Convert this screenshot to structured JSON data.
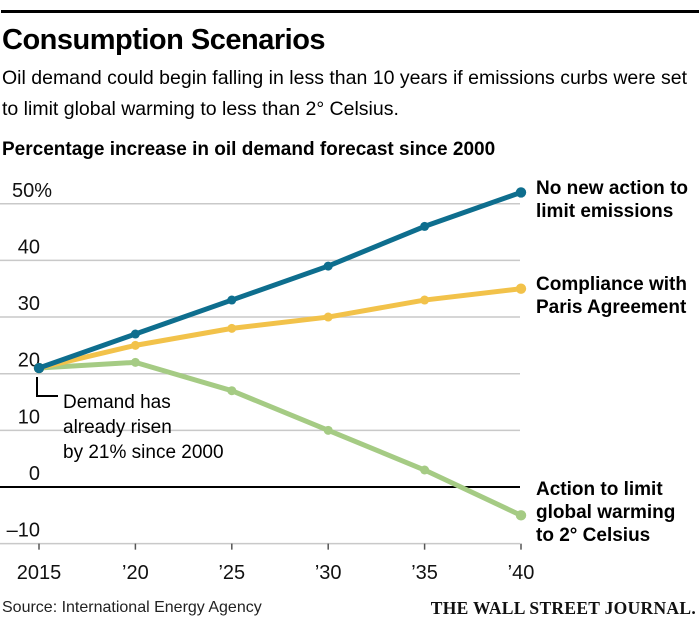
{
  "header": {
    "title": "Consumption Scenarios",
    "subtitle": "Oil demand could begin falling in less than 10 years if emissions curbs were set to limit global warming to less than 2° Celsius.",
    "chart_label": "Percentage increase in oil demand forecast since 2000"
  },
  "chart_data": {
    "type": "line",
    "title": "Percentage increase in oil demand forecast since 2000",
    "x": [
      2015,
      2020,
      2025,
      2030,
      2035,
      2040
    ],
    "x_tick_labels": [
      "2015",
      "’20",
      "’25",
      "’30",
      "’35",
      "’40"
    ],
    "y_ticks": [
      {
        "label": "50%",
        "value": 50
      },
      {
        "label": "40",
        "value": 40
      },
      {
        "label": "30",
        "value": 30
      },
      {
        "label": "20",
        "value": 20
      },
      {
        "label": "10",
        "value": 10
      },
      {
        "label": "0",
        "value": 0
      },
      {
        "label": "–10",
        "value": -10
      }
    ],
    "ylim": [
      -10,
      50
    ],
    "y_unit": "%",
    "grid": true,
    "grid_color": "#c9c9c9",
    "zero_line_color": "#000000",
    "tick_color": "#111111",
    "legend_position": "right",
    "series": [
      {
        "name": "no-new-action",
        "label": "No new action to limit emissions",
        "label_lines": [
          "No new action to",
          "limit emissions"
        ],
        "color": "#0e6e8e",
        "values": [
          21,
          27,
          33,
          39,
          46,
          52
        ]
      },
      {
        "name": "paris-agreement",
        "label": "Compliance with Paris Agreement",
        "label_lines": [
          "Compliance with",
          "Paris Agreement"
        ],
        "color": "#f2c24a",
        "values": [
          21,
          25,
          28,
          30,
          33,
          35
        ]
      },
      {
        "name": "two-degree",
        "label": "Action to limit global warming to 2° Celsius",
        "label_lines": [
          "Action to limit",
          "global warming",
          "to 2° Celsius"
        ],
        "color": "#a5cb84",
        "values": [
          21,
          22,
          17,
          10,
          3,
          -5
        ]
      }
    ],
    "annotation": {
      "lines": [
        "Demand has",
        "already risen",
        "by 21% since 2000"
      ]
    }
  },
  "footer": {
    "source": "Source: International Energy Agency",
    "brand": "THE WALL STREET JOURNAL."
  }
}
